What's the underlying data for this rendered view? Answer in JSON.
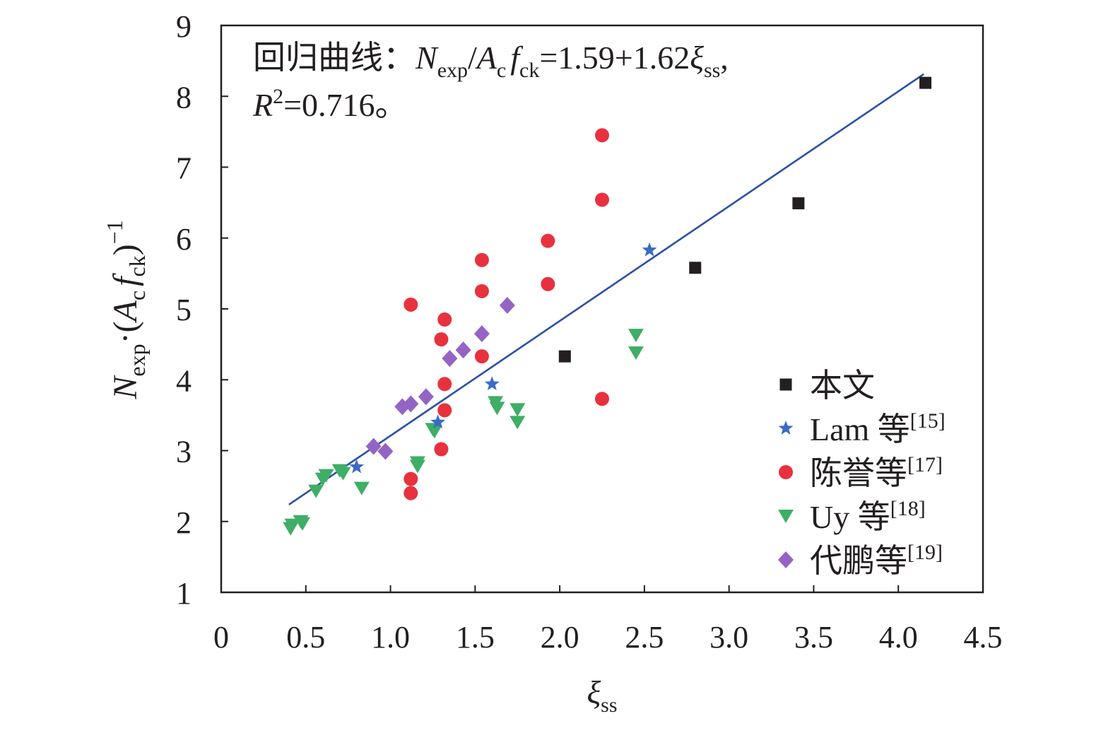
{
  "chart_data": {
    "type": "scatter",
    "title": "",
    "xlabel": "ξss",
    "ylabel": "Nexp·(Acfck)−1",
    "xlim": [
      0,
      4.5
    ],
    "ylim": [
      1,
      9
    ],
    "x_ticks": [
      "0",
      "0.5",
      "1.0",
      "1.5",
      "2.0",
      "2.5",
      "3.0",
      "3.5",
      "4.0",
      "4.5"
    ],
    "y_ticks": [
      "1",
      "2",
      "3",
      "4",
      "5",
      "6",
      "7",
      "8",
      "9"
    ],
    "annotation": {
      "line1_prefix": "回归曲线：",
      "line1_eq": "Nexp/Acfck=1.59+1.62ξss,",
      "line2": "R2=0.716。"
    },
    "regression": {
      "intercept": 1.59,
      "slope": 1.62,
      "x_range": [
        0.4,
        4.15
      ],
      "r2": 0.716,
      "color": "#2b4fa6"
    },
    "series": [
      {
        "name": "本文",
        "ref": "",
        "marker": "square",
        "color": "#231f20",
        "points": [
          [
            2.03,
            4.33
          ],
          [
            2.8,
            5.58
          ],
          [
            3.41,
            6.49
          ],
          [
            4.16,
            8.19
          ]
        ]
      },
      {
        "name": "Lam 等",
        "ref": "[15]",
        "marker": "star",
        "color": "#3a6bc4",
        "points": [
          [
            0.8,
            2.77
          ],
          [
            1.28,
            3.4
          ],
          [
            1.6,
            3.94
          ],
          [
            2.53,
            5.83
          ]
        ]
      },
      {
        "name": "陈誉等",
        "ref": "[17]",
        "marker": "circle",
        "color": "#e8313f",
        "points": [
          [
            1.12,
            5.06
          ],
          [
            1.12,
            2.6
          ],
          [
            1.12,
            2.4
          ],
          [
            1.3,
            4.57
          ],
          [
            1.3,
            3.02
          ],
          [
            1.32,
            4.85
          ],
          [
            1.32,
            3.94
          ],
          [
            1.32,
            3.57
          ],
          [
            1.54,
            5.69
          ],
          [
            1.54,
            5.25
          ],
          [
            1.54,
            4.33
          ],
          [
            1.93,
            5.96
          ],
          [
            1.93,
            5.35
          ],
          [
            2.25,
            7.45
          ],
          [
            2.25,
            6.54
          ],
          [
            2.25,
            3.73
          ]
        ]
      },
      {
        "name": "Uy 等",
        "ref": "[18]",
        "marker": "triangle-down",
        "color": "#3fae66",
        "points": [
          [
            0.41,
            1.9
          ],
          [
            0.42,
            1.95
          ],
          [
            0.47,
            2.0
          ],
          [
            0.48,
            1.97
          ],
          [
            0.56,
            2.43
          ],
          [
            0.6,
            2.6
          ],
          [
            0.62,
            2.65
          ],
          [
            0.7,
            2.72
          ],
          [
            0.72,
            2.68
          ],
          [
            0.83,
            2.47
          ],
          [
            1.16,
            2.83
          ],
          [
            1.16,
            2.78
          ],
          [
            1.25,
            3.3
          ],
          [
            1.26,
            3.27
          ],
          [
            1.62,
            3.68
          ],
          [
            1.63,
            3.6
          ],
          [
            1.75,
            3.58
          ],
          [
            1.75,
            3.4
          ],
          [
            2.45,
            4.63
          ],
          [
            2.45,
            4.38
          ]
        ]
      },
      {
        "name": "代鹏等",
        "ref": "[19]",
        "marker": "diamond",
        "color": "#9364c4",
        "points": [
          [
            0.9,
            3.06
          ],
          [
            0.97,
            2.99
          ],
          [
            1.07,
            3.62
          ],
          [
            1.12,
            3.66
          ],
          [
            1.21,
            3.76
          ],
          [
            1.35,
            4.3
          ],
          [
            1.43,
            4.42
          ],
          [
            1.54,
            4.65
          ],
          [
            1.69,
            5.05
          ]
        ]
      }
    ]
  }
}
